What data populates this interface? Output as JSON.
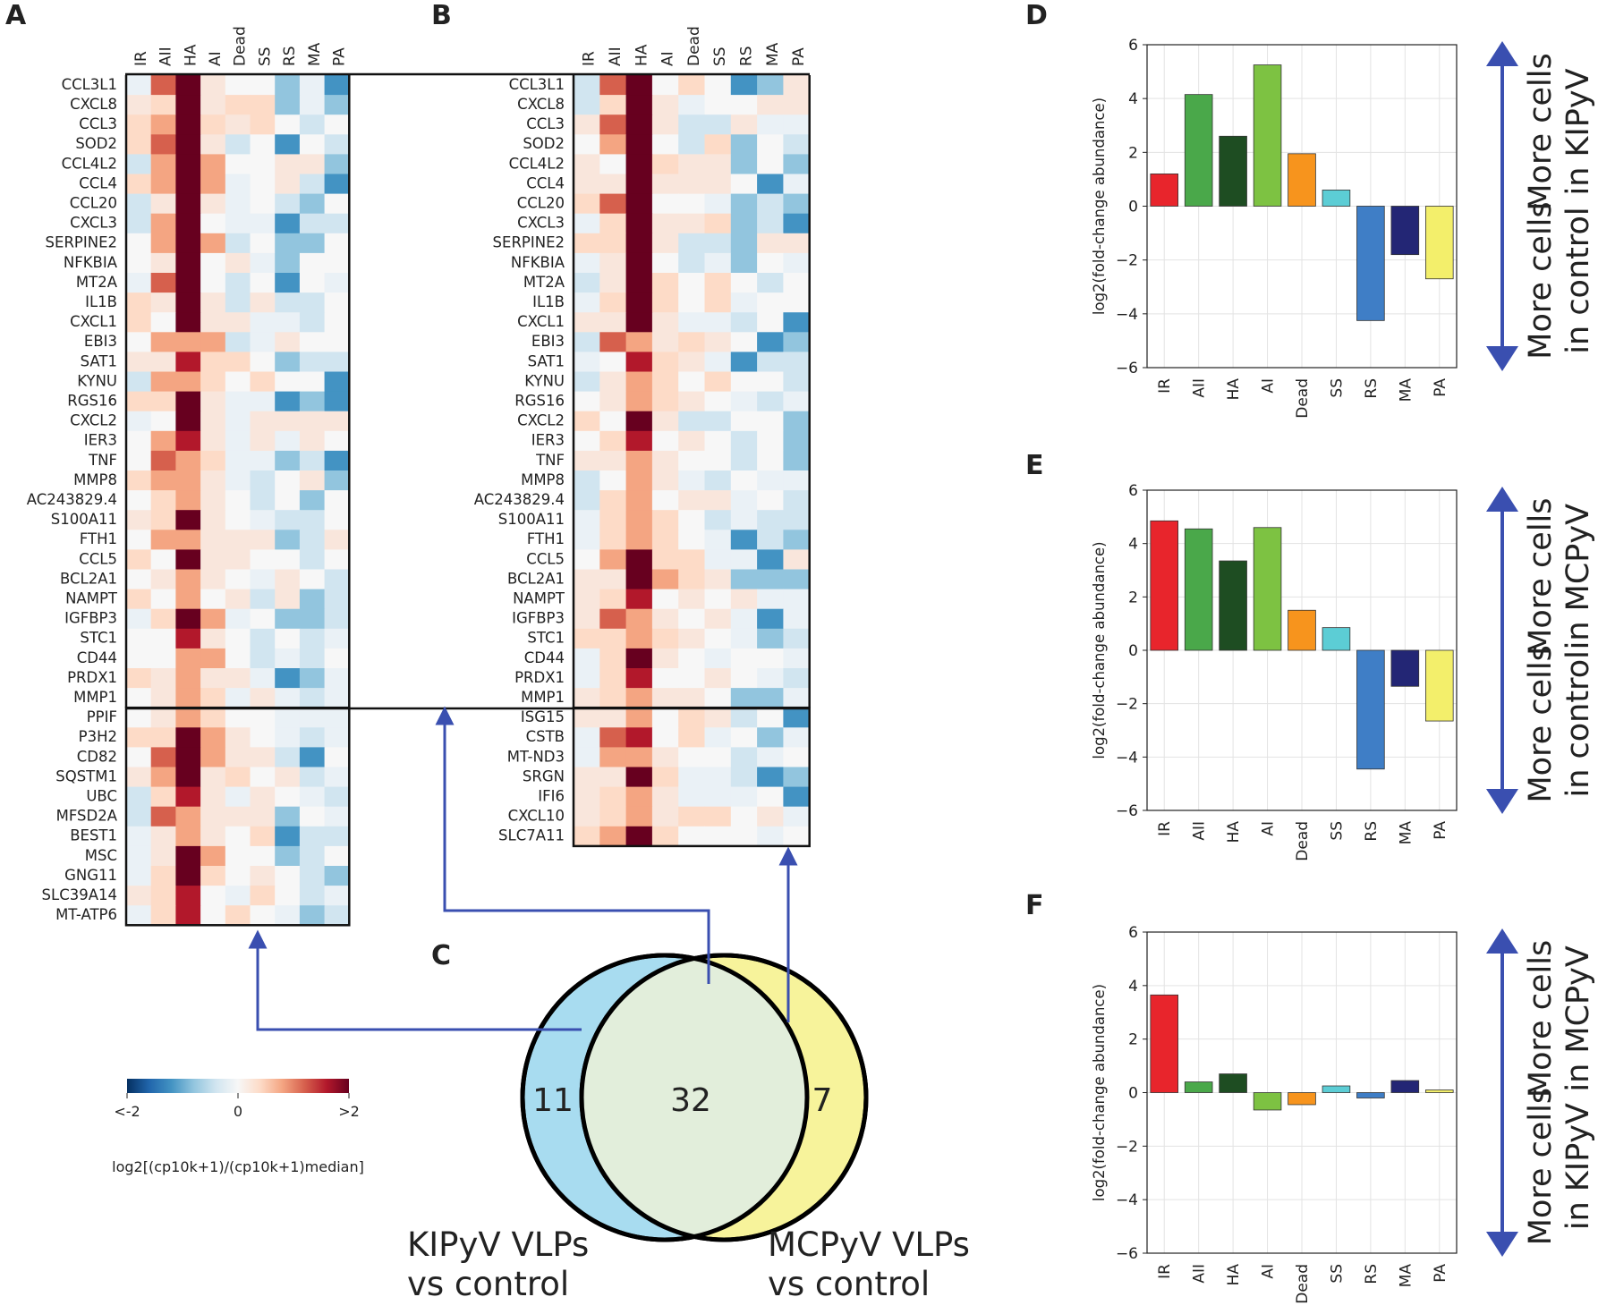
{
  "panels": {
    "a": "A",
    "b": "B",
    "c": "C",
    "d": "D",
    "e": "E",
    "f": "F"
  },
  "heatmap_a": {
    "columns": [
      "IR",
      "AII",
      "HA",
      "AI",
      "Dead",
      "SS",
      "RS",
      "MA",
      "PA"
    ],
    "shared_genes": [
      "CCL3L1",
      "CXCL8",
      "CCL3",
      "SOD2",
      "CCL4L2",
      "CCL4",
      "CCL20",
      "CXCL3",
      "SERPINE2",
      "NFKBIA",
      "MT2A",
      "IL1B",
      "CXCL1",
      "EBI3",
      "SAT1",
      "KYNU",
      "RGS16",
      "CXCL2",
      "IER3",
      "TNF",
      "MMP8",
      "AC243829.4",
      "S100A11",
      "FTH1",
      "CCL5",
      "BCL2A1",
      "NAMPT",
      "IGFBP3",
      "STC1",
      "CD44",
      "PRDX1",
      "MMP1"
    ],
    "unique_genes": [
      "PPIF",
      "P3H2",
      "CD82",
      "SQSTM1",
      "UBC",
      "MFSD2A",
      "BEST1",
      "MSC",
      "GNG11",
      "SLC39A14",
      "MT-ATP6"
    ]
  },
  "heatmap_b": {
    "columns": [
      "IR",
      "AII",
      "HA",
      "AI",
      "Dead",
      "SS",
      "RS",
      "MA",
      "PA"
    ],
    "shared_genes": [
      "CCL3L1",
      "CXCL8",
      "CCL3",
      "SOD2",
      "CCL4L2",
      "CCL4",
      "CCL20",
      "CXCL3",
      "SERPINE2",
      "NFKBIA",
      "MT2A",
      "IL1B",
      "CXCL1",
      "EBI3",
      "SAT1",
      "KYNU",
      "RGS16",
      "CXCL2",
      "IER3",
      "TNF",
      "MMP8",
      "AC243829.4",
      "S100A11",
      "FTH1",
      "CCL5",
      "BCL2A1",
      "NAMPT",
      "IGFBP3",
      "STC1",
      "CD44",
      "PRDX1",
      "MMP1"
    ],
    "unique_genes": [
      "ISG15",
      "CSTB",
      "MT-ND3",
      "SRGN",
      "IFI6",
      "CXCL10",
      "SLC7A11"
    ]
  },
  "colorbar": {
    "min_label": "<-2",
    "mid_label": "0",
    "max_label": ">2",
    "label": "log2[(cp10k+1)/(cp10k+1)median]",
    "colors": [
      "#053061",
      "#2166ac",
      "#4393c3",
      "#92c5de",
      "#d1e5f0",
      "#f7f7f7",
      "#fddbc7",
      "#f4a582",
      "#d6604d",
      "#b2182b",
      "#67001f"
    ]
  },
  "venn": {
    "left_count": "11",
    "overlap_count": "32",
    "right_count": "7",
    "left_label_1": "KIPyV VLPs",
    "left_label_2": "vs control",
    "right_label_1": "MCPyV VLPs",
    "right_label_2": "vs control",
    "left_color": "#a8dcf0",
    "right_color": "#f7f39b",
    "overlap_color": "#e2eedb"
  },
  "chart_data": [
    {
      "type": "bar",
      "categories": [
        "IR",
        "AII",
        "HA",
        "AI",
        "Dead",
        "SS",
        "RS",
        "MA",
        "PA"
      ],
      "values": [
        1.2,
        4.15,
        2.6,
        5.25,
        1.95,
        0.6,
        -4.25,
        -1.8,
        -2.7
      ],
      "ylabel": "log2(fold-change abundance)",
      "ylim": [
        -6,
        6
      ],
      "yticks": [
        "6",
        "4",
        "2",
        "0",
        "−2",
        "−4",
        "−6"
      ],
      "up_label_1": "More cells",
      "up_label_2": "in KIPyV",
      "down_label_1": "More cells",
      "down_label_2": "in control"
    },
    {
      "type": "bar",
      "categories": [
        "IR",
        "AII",
        "HA",
        "AI",
        "Dead",
        "SS",
        "RS",
        "MA",
        "PA"
      ],
      "values": [
        4.85,
        4.55,
        3.35,
        4.6,
        1.5,
        0.85,
        -4.45,
        -1.35,
        -2.65
      ],
      "ylabel": "log2(fold-change abundance)",
      "ylim": [
        -6,
        6
      ],
      "yticks": [
        "6",
        "4",
        "2",
        "0",
        "−2",
        "−4",
        "−6"
      ],
      "up_label_1": "More cells",
      "up_label_2": "in MCPyV",
      "down_label_1": "More cells",
      "down_label_2": "in control"
    },
    {
      "type": "bar",
      "categories": [
        "IR",
        "AII",
        "HA",
        "AI",
        "Dead",
        "SS",
        "RS",
        "MA",
        "PA"
      ],
      "values": [
        3.65,
        0.4,
        0.7,
        -0.65,
        -0.45,
        0.25,
        -0.2,
        0.45,
        0.1
      ],
      "ylabel": "log2(fold-change abundance)",
      "ylim": [
        -6,
        6
      ],
      "yticks": [
        "6",
        "4",
        "2",
        "0",
        "−2",
        "−4",
        "−6"
      ],
      "up_label_1": "More cells",
      "up_label_2": "in MCPyV",
      "down_label_1": "More cells",
      "down_label_2": "in KIPyV"
    }
  ],
  "bar_colors": [
    "#e8252c",
    "#4aa84a",
    "#1e4d22",
    "#7dc242",
    "#f7941d",
    "#5ccdd5",
    "#3f7ec6",
    "#232675",
    "#f3ef6b"
  ],
  "arrow_color": "#3a4fb0"
}
